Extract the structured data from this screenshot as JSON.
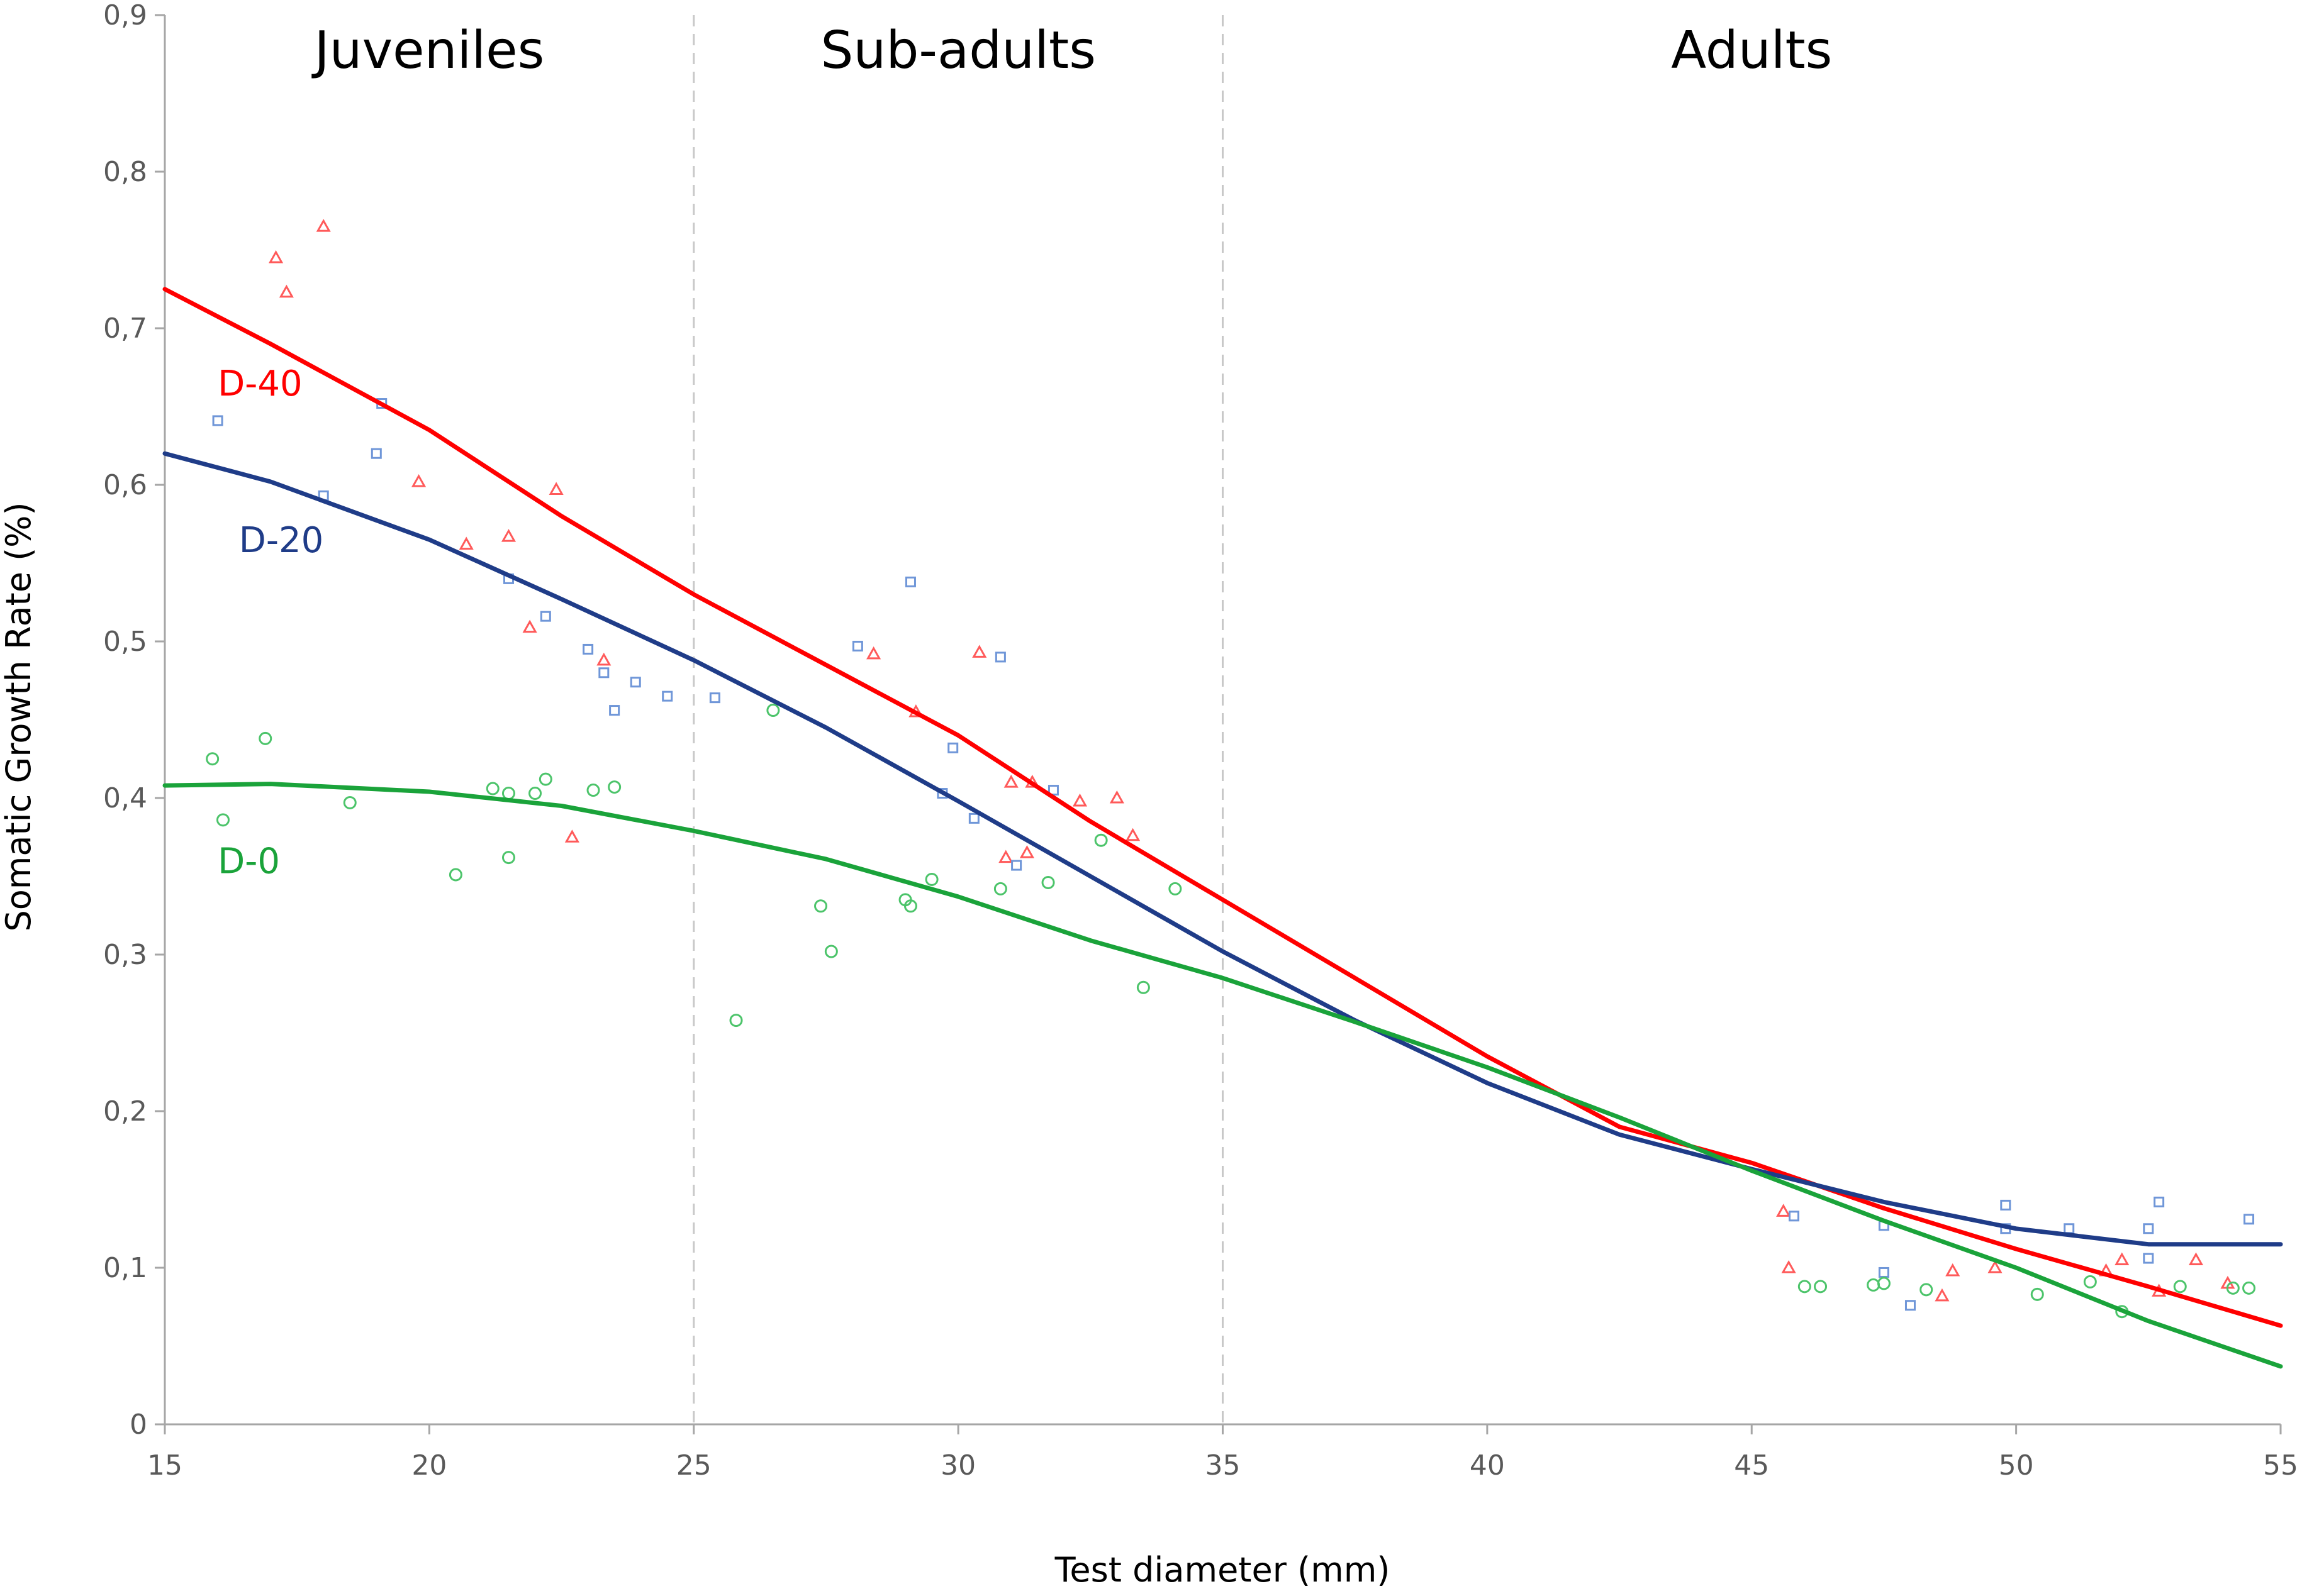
{
  "chart_data": {
    "type": "scatter",
    "xlabel": "Test diameter (mm)",
    "ylabel": "Somatic Growth Rate (%)",
    "xlim": [
      15,
      55
    ],
    "ylim": [
      0,
      0.9
    ],
    "xticks": [
      15,
      20,
      25,
      30,
      35,
      40,
      45,
      50,
      55
    ],
    "xtick_labels": [
      "15",
      "20",
      "25",
      "30",
      "35",
      "40",
      "45",
      "50",
      "55"
    ],
    "yticks": [
      0,
      0.1,
      0.2,
      0.3,
      0.4,
      0.5,
      0.6,
      0.7,
      0.8,
      0.9
    ],
    "ytick_labels": [
      "0",
      "0,1",
      "0,2",
      "0,3",
      "0,4",
      "0,5",
      "0,6",
      "0,7",
      "0,8",
      "0,9"
    ],
    "grid": false,
    "dividers": [
      25,
      35
    ],
    "regions": [
      {
        "label": "Juveniles",
        "x": 20
      },
      {
        "label": "Sub-adults",
        "x": 30
      },
      {
        "label": "Adults",
        "x": 45
      }
    ],
    "series": [
      {
        "name": "D-40",
        "color": "#ff0000",
        "marker": "triangle",
        "label_pos": [
          16,
          0.665
        ],
        "trend": [
          [
            15,
            0.725
          ],
          [
            17,
            0.69
          ],
          [
            20,
            0.635
          ],
          [
            22.5,
            0.58
          ],
          [
            25,
            0.53
          ],
          [
            27.5,
            0.485
          ],
          [
            30,
            0.44
          ],
          [
            32.5,
            0.385
          ],
          [
            35,
            0.335
          ],
          [
            37.5,
            0.285
          ],
          [
            40,
            0.235
          ],
          [
            42.5,
            0.19
          ],
          [
            45,
            0.167
          ],
          [
            47.5,
            0.138
          ],
          [
            50,
            0.112
          ],
          [
            52.5,
            0.088
          ],
          [
            55,
            0.063
          ]
        ],
        "points": [
          [
            17.1,
            0.745
          ],
          [
            17.3,
            0.723
          ],
          [
            18,
            0.765
          ],
          [
            19.8,
            0.602
          ],
          [
            20.7,
            0.562
          ],
          [
            21.5,
            0.567
          ],
          [
            21.9,
            0.509
          ],
          [
            22.4,
            0.597
          ],
          [
            23.3,
            0.488
          ],
          [
            22.7,
            0.375
          ],
          [
            28.4,
            0.492
          ],
          [
            29.2,
            0.455
          ],
          [
            30.4,
            0.493
          ],
          [
            31,
            0.41
          ],
          [
            30.9,
            0.362
          ],
          [
            31.3,
            0.365
          ],
          [
            31.4,
            0.41
          ],
          [
            32.3,
            0.398
          ],
          [
            33,
            0.4
          ],
          [
            33.3,
            0.376
          ],
          [
            45.6,
            0.136
          ],
          [
            45.7,
            0.1
          ],
          [
            48.6,
            0.082
          ],
          [
            48.8,
            0.098
          ],
          [
            49.6,
            0.1
          ],
          [
            51.7,
            0.098
          ],
          [
            52,
            0.105
          ],
          [
            52.7,
            0.085
          ],
          [
            53.4,
            0.105
          ],
          [
            54,
            0.09
          ]
        ]
      },
      {
        "name": "D-20",
        "color": "#1f3c88",
        "marker": "square",
        "label_pos": [
          16.4,
          0.565
        ],
        "trend": [
          [
            15,
            0.62
          ],
          [
            17,
            0.602
          ],
          [
            20,
            0.565
          ],
          [
            22.5,
            0.527
          ],
          [
            25,
            0.488
          ],
          [
            27.5,
            0.445
          ],
          [
            30,
            0.398
          ],
          [
            32.5,
            0.35
          ],
          [
            35,
            0.302
          ],
          [
            37.5,
            0.258
          ],
          [
            40,
            0.218
          ],
          [
            42.5,
            0.185
          ],
          [
            45,
            0.163
          ],
          [
            47.5,
            0.142
          ],
          [
            50,
            0.125
          ],
          [
            52.5,
            0.115
          ],
          [
            55,
            0.115
          ]
        ],
        "points": [
          [
            16,
            0.641
          ],
          [
            19.1,
            0.652
          ],
          [
            19,
            0.62
          ],
          [
            18,
            0.593
          ],
          [
            21.5,
            0.54
          ],
          [
            22.2,
            0.516
          ],
          [
            23,
            0.495
          ],
          [
            23.3,
            0.48
          ],
          [
            23.5,
            0.456
          ],
          [
            23.9,
            0.474
          ],
          [
            24.5,
            0.465
          ],
          [
            25.4,
            0.464
          ],
          [
            28.1,
            0.497
          ],
          [
            29.1,
            0.538
          ],
          [
            30.8,
            0.49
          ],
          [
            29.9,
            0.432
          ],
          [
            29.7,
            0.403
          ],
          [
            30.3,
            0.387
          ],
          [
            31.1,
            0.357
          ],
          [
            31.8,
            0.405
          ],
          [
            45.8,
            0.133
          ],
          [
            47.5,
            0.127
          ],
          [
            47.5,
            0.097
          ],
          [
            48,
            0.076
          ],
          [
            49.8,
            0.125
          ],
          [
            49.8,
            0.14
          ],
          [
            51,
            0.125
          ],
          [
            52.5,
            0.125
          ],
          [
            52.5,
            0.106
          ],
          [
            52.7,
            0.142
          ],
          [
            54.4,
            0.131
          ]
        ]
      },
      {
        "name": "D-0",
        "color": "#1aa33a",
        "marker": "circle",
        "label_pos": [
          16,
          0.36
        ],
        "trend": [
          [
            15,
            0.408
          ],
          [
            17,
            0.409
          ],
          [
            20,
            0.404
          ],
          [
            22.5,
            0.395
          ],
          [
            25,
            0.379
          ],
          [
            27.5,
            0.361
          ],
          [
            30,
            0.337
          ],
          [
            32.5,
            0.309
          ],
          [
            35,
            0.285
          ],
          [
            37.5,
            0.257
          ],
          [
            40,
            0.228
          ],
          [
            42.5,
            0.196
          ],
          [
            45,
            0.162
          ],
          [
            47.5,
            0.13
          ],
          [
            50,
            0.1
          ],
          [
            52.5,
            0.066
          ],
          [
            55,
            0.037
          ]
        ],
        "points": [
          [
            15.9,
            0.425
          ],
          [
            16.1,
            0.386
          ],
          [
            16.9,
            0.438
          ],
          [
            18.5,
            0.397
          ],
          [
            20.5,
            0.351
          ],
          [
            21.2,
            0.406
          ],
          [
            21.5,
            0.403
          ],
          [
            21.5,
            0.362
          ],
          [
            22,
            0.403
          ],
          [
            22.2,
            0.412
          ],
          [
            23.1,
            0.405
          ],
          [
            23.5,
            0.407
          ],
          [
            25.8,
            0.258
          ],
          [
            26.5,
            0.456
          ],
          [
            27.4,
            0.331
          ],
          [
            27.6,
            0.302
          ],
          [
            29,
            0.335
          ],
          [
            29.1,
            0.331
          ],
          [
            29.5,
            0.348
          ],
          [
            30.8,
            0.342
          ],
          [
            31.7,
            0.346
          ],
          [
            32.7,
            0.373
          ],
          [
            33.5,
            0.279
          ],
          [
            34.1,
            0.342
          ],
          [
            46,
            0.088
          ],
          [
            46.3,
            0.088
          ],
          [
            47.3,
            0.089
          ],
          [
            47.5,
            0.09
          ],
          [
            48.3,
            0.086
          ],
          [
            50.4,
            0.083
          ],
          [
            51.4,
            0.091
          ],
          [
            52,
            0.072
          ],
          [
            53.1,
            0.088
          ],
          [
            54.1,
            0.087
          ],
          [
            54.4,
            0.087
          ]
        ]
      }
    ]
  }
}
